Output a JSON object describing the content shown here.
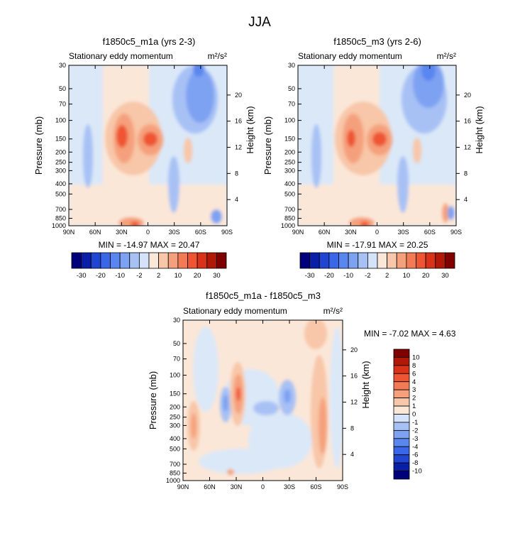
{
  "page_title": "JJA",
  "chart_data": [
    {
      "type": "heatmap",
      "title": "f1850c5_m1a (yrs 2-3)",
      "left_label": "Stationary eddy momentum",
      "units": "m²/s²",
      "ylabel": "Pressure (mb)",
      "ylabel_right": "Height (km)",
      "x_ticks": [
        "90N",
        "60N",
        "30N",
        "0",
        "30S",
        "60S",
        "90S"
      ],
      "y_ticks": [
        "30",
        "50",
        "70",
        "100",
        "150",
        "200",
        "250",
        "300",
        "400",
        "500",
        "700",
        "850",
        "1000"
      ],
      "height_ticks": [
        "20",
        "16",
        "12",
        "8",
        "4"
      ],
      "min_max": "MIN = -14.97  MAX = 20.47"
    },
    {
      "type": "heatmap",
      "title": "f1850c5_m3 (yrs 2-6)",
      "left_label": "Stationary eddy momentum",
      "units": "m²/s²",
      "ylabel": "Pressure (mb)",
      "ylabel_right": "Height (km)",
      "x_ticks": [
        "90N",
        "60N",
        "30N",
        "0",
        "30S",
        "60S",
        "90S"
      ],
      "y_ticks": [
        "30",
        "50",
        "70",
        "100",
        "150",
        "200",
        "250",
        "300",
        "400",
        "500",
        "700",
        "850",
        "1000"
      ],
      "height_ticks": [
        "20",
        "16",
        "12",
        "8",
        "4"
      ],
      "min_max": "MIN = -17.91  MAX = 20.25"
    },
    {
      "type": "heatmap",
      "title": "f1850c5_m1a - f1850c5_m3",
      "left_label": "Stationary eddy momentum",
      "units": "m²/s²",
      "ylabel": "Pressure (mb)",
      "ylabel_right": "Height (km)",
      "x_ticks": [
        "90N",
        "60N",
        "30N",
        "0",
        "30S",
        "60S",
        "90S"
      ],
      "y_ticks": [
        "30",
        "50",
        "70",
        "100",
        "150",
        "200",
        "250",
        "300",
        "400",
        "500",
        "700",
        "850",
        "1000"
      ],
      "height_ticks": [
        "20",
        "16",
        "12",
        "8",
        "4"
      ],
      "min_max": "MIN = -7.02  MAX = 4.63"
    }
  ],
  "colorbar_main": {
    "labels": [
      "-30",
      "-20",
      "-10",
      "-2",
      "2",
      "10",
      "20",
      "30"
    ],
    "colors": [
      "#00007a",
      "#0a1fa8",
      "#1f45d1",
      "#3a66e8",
      "#5a86f0",
      "#7ea2f2",
      "#a7c1f5",
      "#d4e2fa",
      "#fbe7d8",
      "#f8c6a8",
      "#f5a07c",
      "#f27a55",
      "#ef5532",
      "#d93218",
      "#b01808",
      "#800000"
    ]
  },
  "colorbar_diff": {
    "labels": [
      "10",
      "8",
      "6",
      "4",
      "3",
      "2",
      "1",
      "0",
      "-1",
      "-2",
      "-3",
      "-4",
      "-6",
      "-8",
      "-10"
    ],
    "colors": [
      "#800000",
      "#b01808",
      "#d93218",
      "#ef5532",
      "#f27a55",
      "#f5a07c",
      "#f8c6a8",
      "#fbe7d8",
      "#d4e2fa",
      "#a7c1f5",
      "#7ea2f2",
      "#5a86f0",
      "#3a66e8",
      "#1f45d1",
      "#0a1fa8",
      "#00007a"
    ]
  },
  "field_colors": {
    "bg_pos": "#fbe7d8",
    "bg_neg": "#dbe8f8",
    "pos1": "#f8c6a8",
    "pos2": "#f5a07c",
    "pos3": "#ef5532",
    "neg1": "#a7c1f5",
    "neg2": "#7ea2f2",
    "neg3": "#5a86f0"
  }
}
